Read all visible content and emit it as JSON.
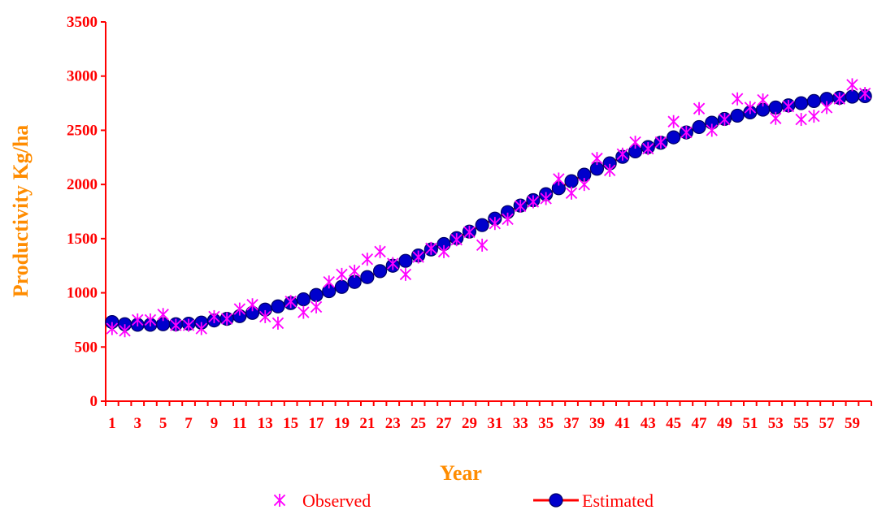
{
  "colors": {
    "axis": "#ff0000",
    "tick_text": "#ff0000",
    "axis_title": "#ff8c00",
    "observed": "#ff00ff",
    "estimated_line": "#ff0000",
    "estimated_marker_fill": "#0000cc",
    "estimated_marker_stroke": "#000066"
  },
  "chart_data": {
    "type": "scatter",
    "title": "",
    "xlabel": "Year",
    "ylabel": "Productivity Kg/ha",
    "xlim": [
      0.5,
      60.5
    ],
    "ylim": [
      0,
      3500
    ],
    "y_ticks": [
      0,
      500,
      1000,
      1500,
      2000,
      2500,
      3000,
      3500
    ],
    "x_tick_labels": [
      "1",
      "3",
      "5",
      "7",
      "9",
      "11",
      "13",
      "15",
      "17",
      "19",
      "21",
      "23",
      "25",
      "27",
      "29",
      "31",
      "33",
      "35",
      "37",
      "39",
      "41",
      "43",
      "45",
      "47",
      "49",
      "51",
      "53",
      "55",
      "57",
      "59"
    ],
    "x_tick_positions": [
      1,
      3,
      5,
      7,
      9,
      11,
      13,
      15,
      17,
      19,
      21,
      23,
      25,
      27,
      29,
      31,
      33,
      35,
      37,
      39,
      41,
      43,
      45,
      47,
      49,
      51,
      53,
      55,
      57,
      59
    ],
    "grid": false,
    "legend_position": "bottom",
    "x": [
      1,
      2,
      3,
      4,
      5,
      6,
      7,
      8,
      9,
      10,
      11,
      12,
      13,
      14,
      15,
      16,
      17,
      18,
      19,
      20,
      21,
      22,
      23,
      24,
      25,
      26,
      27,
      28,
      29,
      30,
      31,
      32,
      33,
      34,
      35,
      36,
      37,
      38,
      39,
      40,
      41,
      42,
      43,
      44,
      45,
      46,
      47,
      48,
      49,
      50,
      51,
      52,
      53,
      54,
      55,
      56,
      57,
      58,
      59,
      60
    ],
    "series": [
      {
        "name": "Observed",
        "marker": "asterisk",
        "values": [
          670,
          650,
          750,
          750,
          800,
          700,
          700,
          670,
          780,
          760,
          850,
          890,
          780,
          720,
          920,
          820,
          870,
          1100,
          1170,
          1200,
          1310,
          1380,
          1270,
          1170,
          1330,
          1410,
          1380,
          1490,
          1560,
          1440,
          1640,
          1680,
          1800,
          1840,
          1870,
          2050,
          1920,
          2000,
          2240,
          2130,
          2280,
          2390,
          2330,
          2390,
          2580,
          2480,
          2700,
          2500,
          2600,
          2790,
          2710,
          2780,
          2610,
          2720,
          2600,
          2630,
          2710,
          2790,
          2920,
          2840
        ]
      },
      {
        "name": "Estimated",
        "marker": "circle-line",
        "values": [
          730,
          710,
          705,
          705,
          710,
          710,
          715,
          725,
          745,
          760,
          785,
          815,
          845,
          875,
          905,
          940,
          980,
          1015,
          1055,
          1100,
          1145,
          1200,
          1250,
          1295,
          1345,
          1400,
          1450,
          1505,
          1565,
          1625,
          1685,
          1745,
          1805,
          1855,
          1910,
          1965,
          2030,
          2090,
          2145,
          2195,
          2255,
          2305,
          2345,
          2385,
          2435,
          2480,
          2530,
          2570,
          2605,
          2635,
          2665,
          2690,
          2710,
          2730,
          2750,
          2770,
          2790,
          2800,
          2810,
          2815
        ]
      }
    ]
  }
}
